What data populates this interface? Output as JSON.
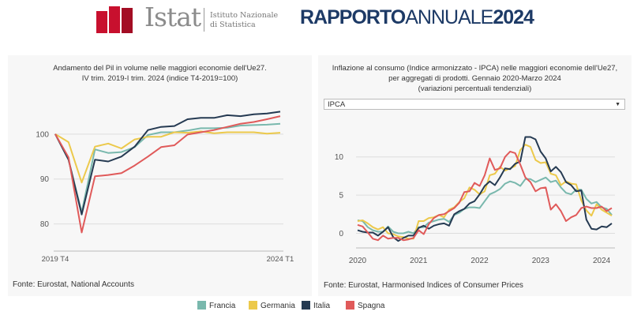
{
  "header": {
    "logo_word": "Istat",
    "logo_sub_line1": "Istituto Nazionale",
    "logo_sub_line2": "di Statistica",
    "report_bold1": "RAPPORTO",
    "report_thin": "ANNUALE",
    "report_bold2": "2024",
    "brand_colors": {
      "logo_red": "#c8102e",
      "report_blue": "#1d3a66"
    }
  },
  "left_chart": {
    "title_line1": "Andamento del Pil in volume nelle maggiori economie dell'Ue27.",
    "title_line2": "IV trim. 2019-I trim. 2024 (indice T4-2019=100)",
    "source": "Fonte: Eurostat, National Accounts"
  },
  "right_chart": {
    "title_line1": "Inflazione al consumo (Indice armonizzato - IPCA) nelle maggiori economie dell'Ue27,",
    "title_line2": "per aggregati di prodotti. Gennaio 2020-Marzo 2024",
    "title_line3": "(variazioni percentuali tendenziali)",
    "dropdown_value": "IPCA",
    "dropdown_icon": "caret-down-icon",
    "source": "Fonte: Eurostat, Harmonised Indices of Consumer Prices"
  },
  "legend": [
    {
      "label": "Francia",
      "color": "#79b8ad"
    },
    {
      "label": "Germania",
      "color": "#ecc94b"
    },
    {
      "label": "Italia",
      "color": "#253a52"
    },
    {
      "label": "Spagna",
      "color": "#e05a5a"
    }
  ],
  "chart_data": [
    {
      "type": "line",
      "title": "Andamento del Pil in volume nelle maggiori economie dell'Ue27. IV trim. 2019-I trim. 2024 (indice T4-2019=100)",
      "x": [
        "2019 T4",
        "2020 T1",
        "2020 T2",
        "2020 T3",
        "2020 T4",
        "2021 T1",
        "2021 T2",
        "2021 T3",
        "2021 T4",
        "2022 T1",
        "2022 T2",
        "2022 T3",
        "2022 T4",
        "2023 T1",
        "2023 T2",
        "2023 T3",
        "2023 T4",
        "2024 T1"
      ],
      "x_tick_labels": [
        "2019 T4",
        "2024 T1"
      ],
      "ylim": [
        75,
        107
      ],
      "y_ticks": [
        80,
        90,
        100
      ],
      "grid": "horizontal",
      "series": [
        {
          "name": "Francia",
          "color": "#79b8ad",
          "values": [
            100,
            94.3,
            82.6,
            96.6,
            95.8,
            96.0,
            97.1,
            99.8,
            100.4,
            100.4,
            100.8,
            101.3,
            101.3,
            101.4,
            101.9,
            102.0,
            102.1,
            102.3
          ]
        },
        {
          "name": "Germania",
          "color": "#ecc94b",
          "values": [
            100,
            98.2,
            89.2,
            97.2,
            97.9,
            96.8,
            98.8,
            99.4,
            99.4,
            100.4,
            100.3,
            100.6,
            100.2,
            100.4,
            100.4,
            100.4,
            100.1,
            100.3
          ]
        },
        {
          "name": "Italia",
          "color": "#253a52",
          "values": [
            100,
            94.3,
            82.1,
            94.3,
            93.9,
            95.0,
            97.2,
            100.9,
            101.6,
            101.8,
            103.3,
            103.6,
            103.6,
            104.2,
            104.0,
            104.4,
            104.6,
            105.0
          ]
        },
        {
          "name": "Spagna",
          "color": "#e05a5a",
          "values": [
            100,
            94.8,
            78.1,
            90.6,
            90.9,
            91.3,
            93.0,
            95.0,
            97.1,
            97.5,
            99.9,
            100.4,
            100.9,
            101.6,
            102.3,
            102.7,
            103.3,
            104.0
          ]
        }
      ]
    },
    {
      "type": "line",
      "title": "Inflazione al consumo (Indice armonizzato - IPCA) nelle maggiori economie dell'Ue27, per aggregati di prodotti. Gennaio 2020-Marzo 2024 (variazioni percentuali tendenziali)",
      "x": [
        "2020-01",
        "2020-02",
        "2020-03",
        "2020-04",
        "2020-05",
        "2020-06",
        "2020-07",
        "2020-08",
        "2020-09",
        "2020-10",
        "2020-11",
        "2020-12",
        "2021-01",
        "2021-02",
        "2021-03",
        "2021-04",
        "2021-05",
        "2021-06",
        "2021-07",
        "2021-08",
        "2021-09",
        "2021-10",
        "2021-11",
        "2021-12",
        "2022-01",
        "2022-02",
        "2022-03",
        "2022-04",
        "2022-05",
        "2022-06",
        "2022-07",
        "2022-08",
        "2022-09",
        "2022-10",
        "2022-11",
        "2022-12",
        "2023-01",
        "2023-02",
        "2023-03",
        "2023-04",
        "2023-05",
        "2023-06",
        "2023-07",
        "2023-08",
        "2023-09",
        "2023-10",
        "2023-11",
        "2023-12",
        "2024-01",
        "2024-02",
        "2024-03"
      ],
      "x_tick_labels": [
        "2020",
        "2021",
        "2022",
        "2023",
        "2024"
      ],
      "ylim": [
        -1.5,
        14
      ],
      "y_ticks": [
        0,
        5,
        10
      ],
      "grid": "horizontal",
      "series": [
        {
          "name": "Francia",
          "color": "#79b8ad",
          "values": [
            1.7,
            1.6,
            0.8,
            0.4,
            0.2,
            0.2,
            0.9,
            0.2,
            0.0,
            0.0,
            0.2,
            0.0,
            0.8,
            0.8,
            1.4,
            1.6,
            1.8,
            1.9,
            1.5,
            2.4,
            2.7,
            3.2,
            3.4,
            3.4,
            3.3,
            4.2,
            5.1,
            5.4,
            5.8,
            6.5,
            6.8,
            6.6,
            6.2,
            7.1,
            7.1,
            6.7,
            7.0,
            7.3,
            6.7,
            6.9,
            6.0,
            5.3,
            5.1,
            5.7,
            5.7,
            4.5,
            3.9,
            4.1,
            3.4,
            3.2,
            2.4
          ]
        },
        {
          "name": "Germania",
          "color": "#ecc94b",
          "values": [
            1.6,
            1.7,
            1.3,
            0.8,
            0.5,
            0.8,
            0.0,
            -0.1,
            -0.4,
            -0.5,
            -0.7,
            -0.7,
            1.6,
            1.6,
            2.0,
            2.1,
            2.4,
            2.1,
            3.1,
            3.4,
            4.1,
            4.6,
            6.0,
            5.7,
            5.1,
            5.5,
            7.6,
            7.8,
            8.7,
            8.2,
            8.5,
            8.8,
            10.9,
            11.6,
            11.3,
            9.6,
            9.2,
            9.3,
            7.8,
            7.6,
            6.3,
            6.8,
            6.5,
            6.4,
            4.3,
            3.0,
            2.3,
            3.8,
            3.1,
            2.7,
            2.3
          ]
        },
        {
          "name": "Italia",
          "color": "#253a52",
          "values": [
            0.4,
            0.2,
            0.1,
            0.1,
            -0.3,
            0.2,
            0.8,
            -0.5,
            -1.0,
            -0.6,
            -0.3,
            -0.3,
            0.7,
            1.0,
            0.6,
            1.0,
            1.2,
            1.3,
            1.0,
            2.5,
            2.9,
            3.2,
            3.9,
            4.2,
            5.1,
            6.2,
            6.8,
            6.3,
            7.3,
            8.5,
            8.4,
            9.1,
            9.4,
            12.6,
            12.6,
            12.3,
            10.7,
            9.8,
            8.1,
            8.7,
            8.0,
            6.7,
            6.3,
            5.5,
            5.6,
            1.8,
            0.6,
            0.5,
            0.9,
            0.8,
            1.3
          ]
        },
        {
          "name": "Spagna",
          "color": "#e05a5a",
          "values": [
            1.1,
            0.9,
            0.1,
            -0.7,
            -0.9,
            -0.3,
            -0.7,
            -0.6,
            -0.6,
            -0.9,
            -0.8,
            -0.6,
            0.4,
            -0.1,
            1.2,
            2.0,
            2.4,
            2.5,
            2.9,
            3.3,
            4.0,
            5.4,
            5.5,
            6.6,
            6.2,
            7.6,
            9.8,
            8.3,
            8.5,
            10.0,
            10.7,
            10.5,
            9.0,
            7.3,
            6.7,
            5.5,
            5.9,
            6.0,
            3.1,
            3.8,
            2.9,
            1.6,
            2.1,
            2.4,
            3.3,
            3.5,
            3.3,
            3.3,
            3.5,
            2.9,
            3.3
          ]
        }
      ]
    }
  ]
}
